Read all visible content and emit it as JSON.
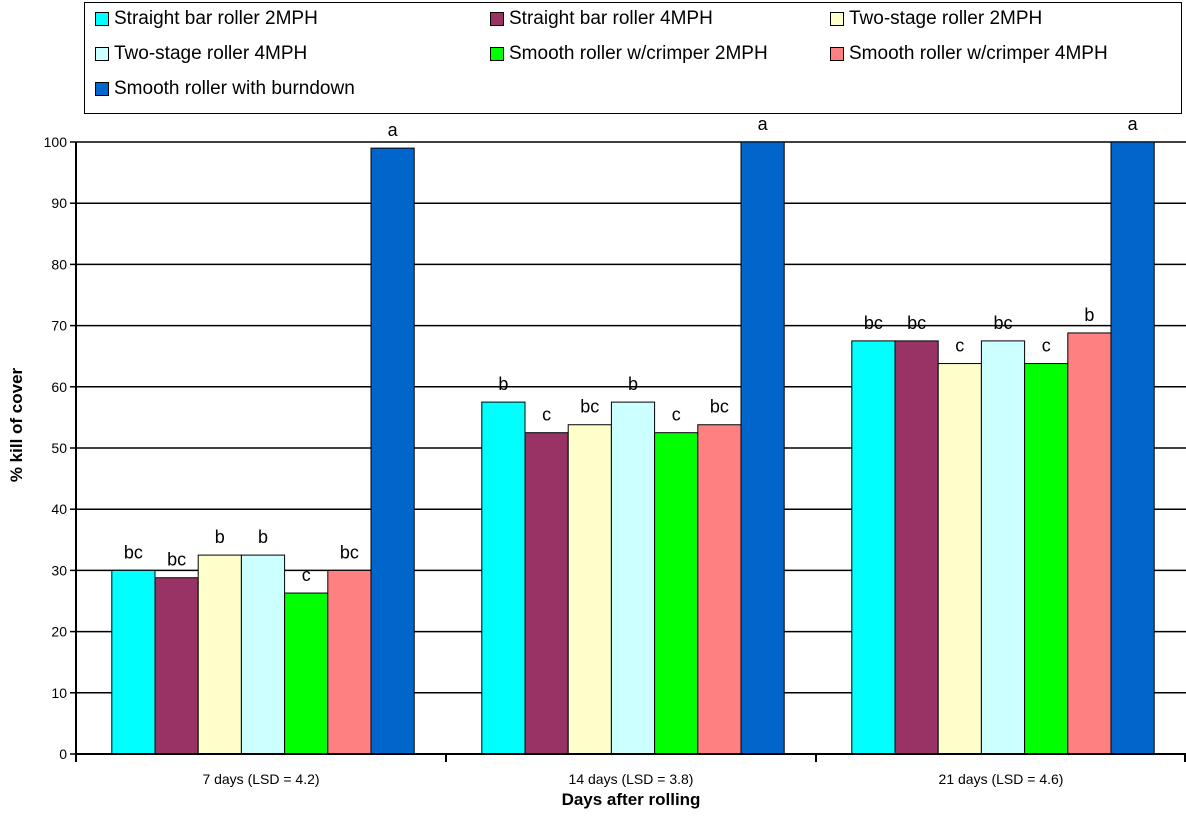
{
  "chart_data": {
    "type": "bar",
    "title": "",
    "xlabel": "Days after rolling",
    "ylabel": "% kill of cover",
    "ylim": [
      0,
      100
    ],
    "yticks": [
      "0",
      "10",
      "20",
      "30",
      "40",
      "50",
      "60",
      "70",
      "80",
      "90",
      "100"
    ],
    "grid": true,
    "legend_position": "top",
    "categories": [
      "7 days (LSD = 4.2)",
      "14 days (LSD = 3.8)",
      "21 days (LSD = 4.6)"
    ],
    "series": [
      {
        "name": "Straight bar roller 2MPH",
        "color": "#00FFFF",
        "values": [
          30,
          57.5,
          67.5
        ],
        "labels": [
          "bc",
          "b",
          "bc"
        ]
      },
      {
        "name": "Straight bar roller 4MPH",
        "color": "#993366",
        "values": [
          28.8,
          52.5,
          67.5
        ],
        "labels": [
          "bc",
          "c",
          "bc"
        ]
      },
      {
        "name": "Two-stage roller 2MPH",
        "color": "#FFFFCC",
        "values": [
          32.5,
          53.8,
          63.8
        ],
        "labels": [
          "b",
          "bc",
          "c"
        ]
      },
      {
        "name": "Two-stage roller 4MPH",
        "color": "#CCFFFF",
        "values": [
          32.5,
          57.5,
          67.5
        ],
        "labels": [
          "b",
          "b",
          "bc"
        ]
      },
      {
        "name": "Smooth roller w/crimper 2MPH",
        "color": "#00FF00",
        "values": [
          26.3,
          52.5,
          63.8
        ],
        "labels": [
          "c",
          "c",
          "c"
        ]
      },
      {
        "name": "Smooth roller w/crimper 4MPH",
        "color": "#FF8080",
        "values": [
          30,
          53.8,
          68.8
        ],
        "labels": [
          "bc",
          "bc",
          "b"
        ]
      },
      {
        "name": "Smooth roller with burndown",
        "color": "#0066CC",
        "values": [
          99,
          100,
          100
        ],
        "labels": [
          "a",
          "a",
          "a"
        ]
      }
    ]
  }
}
